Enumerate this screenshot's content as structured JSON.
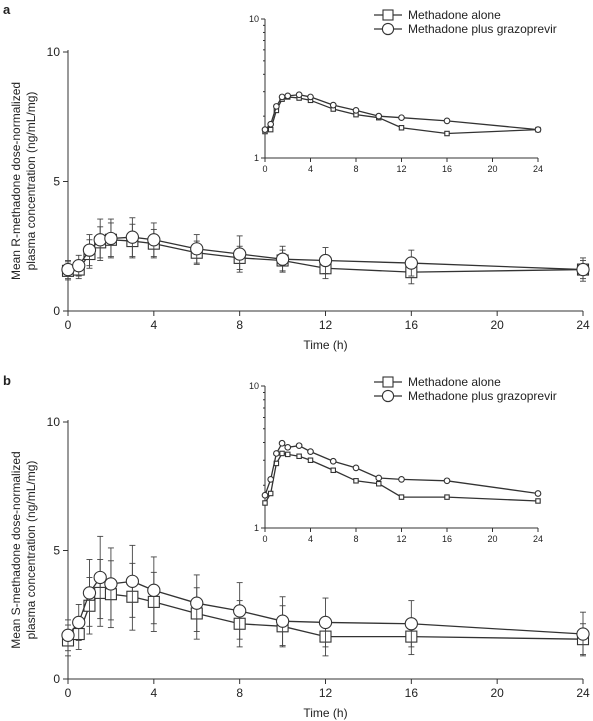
{
  "chart_data": [
    {
      "panel_label": "a",
      "type": "line",
      "xlabel": "Time (h)",
      "ylabel_line1": "Mean R-methadone dose-normalized",
      "ylabel_line2": "plasma concentration (ng/mL/mg)",
      "xlim": [
        0,
        24
      ],
      "ylim": [
        0,
        10
      ],
      "x_ticks": [
        0,
        4,
        8,
        12,
        16,
        20,
        24
      ],
      "y_ticks": [
        0,
        5,
        10
      ],
      "legend_position": "top-right",
      "x": [
        0,
        0.5,
        1,
        1.5,
        2,
        3,
        4,
        6,
        8,
        10,
        12,
        16,
        24
      ],
      "series": [
        {
          "name": "Methadone alone",
          "marker": "square",
          "values": [
            1.55,
            1.6,
            2.2,
            2.65,
            2.75,
            2.7,
            2.6,
            2.25,
            2.05,
            1.95,
            1.65,
            1.5,
            1.6
          ],
          "error": [
            0.35,
            0.35,
            0.55,
            0.6,
            0.65,
            0.65,
            0.55,
            0.45,
            0.45,
            0.4,
            0.4,
            0.45,
            0.35
          ]
        },
        {
          "name": "Methadone plus grazoprevir",
          "marker": "circle",
          "values": [
            1.6,
            1.75,
            2.35,
            2.75,
            2.8,
            2.85,
            2.75,
            2.4,
            2.2,
            2.0,
            1.95,
            1.85,
            1.6
          ],
          "error": [
            0.35,
            0.4,
            0.6,
            0.8,
            0.75,
            0.75,
            0.65,
            0.55,
            0.7,
            0.5,
            0.5,
            0.5,
            0.45
          ]
        }
      ],
      "inset": {
        "type": "line",
        "log_y": true,
        "xlim": [
          0,
          24
        ],
        "ylim": [
          1,
          10
        ],
        "x_ticks": [
          0,
          4,
          8,
          12,
          16,
          20,
          24
        ],
        "y_ticks": [
          1,
          10
        ]
      }
    },
    {
      "panel_label": "b",
      "type": "line",
      "xlabel": "Time (h)",
      "ylabel_line1": "Mean S-methadone dose-normalized",
      "ylabel_line2": "plasma concentration (ng/mL/mg)",
      "xlim": [
        0,
        24
      ],
      "ylim": [
        0,
        10
      ],
      "x_ticks": [
        0,
        4,
        8,
        12,
        16,
        20,
        24
      ],
      "y_ticks": [
        0,
        5,
        10
      ],
      "legend_position": "top-right",
      "x": [
        0,
        0.5,
        1,
        1.5,
        2,
        3,
        4,
        6,
        8,
        10,
        12,
        16,
        24
      ],
      "series": [
        {
          "name": "Methadone alone",
          "marker": "square",
          "values": [
            1.5,
            1.75,
            2.85,
            3.35,
            3.3,
            3.2,
            3.0,
            2.55,
            2.15,
            2.05,
            1.65,
            1.65,
            1.55
          ],
          "error": [
            0.6,
            0.6,
            1.1,
            1.3,
            1.3,
            1.3,
            1.15,
            1.0,
            0.9,
            0.8,
            0.75,
            0.7,
            0.6
          ]
        },
        {
          "name": "Methadone plus grazoprevir",
          "marker": "circle",
          "values": [
            1.7,
            2.2,
            3.35,
            3.95,
            3.7,
            3.8,
            3.45,
            2.95,
            2.65,
            2.25,
            2.2,
            2.15,
            1.75
          ],
          "error": [
            0.6,
            0.7,
            1.3,
            1.6,
            1.4,
            1.4,
            1.3,
            1.1,
            1.1,
            0.95,
            0.95,
            0.9,
            0.85
          ]
        }
      ],
      "inset": {
        "type": "line",
        "log_y": true,
        "xlim": [
          0,
          24
        ],
        "ylim": [
          1,
          10
        ],
        "x_ticks": [
          0,
          4,
          8,
          12,
          16,
          20,
          24
        ],
        "y_ticks": [
          1,
          10
        ]
      }
    }
  ]
}
